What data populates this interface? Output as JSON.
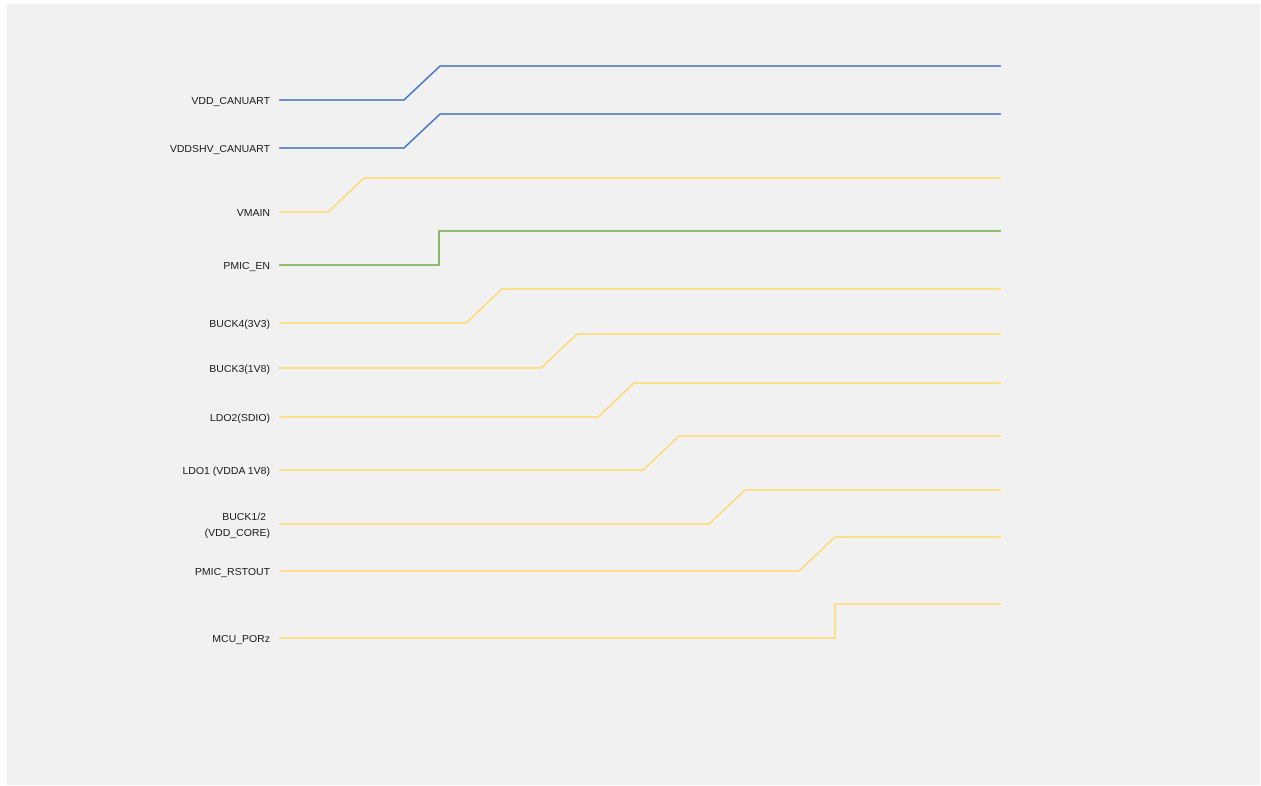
{
  "diagram": {
    "type": "power-sequence-timing",
    "colors": {
      "blue": "#4472c4",
      "yellow": "#ffd966",
      "green": "#70ad47"
    },
    "signals": [
      {
        "id": "vdd-canuart",
        "label": "VDD_CANUART",
        "color": "blue",
        "rise": "ramp"
      },
      {
        "id": "vddshv-canuart",
        "label": "VDDSHV_CANUART",
        "color": "blue",
        "rise": "ramp"
      },
      {
        "id": "vmain",
        "label": "VMAIN",
        "color": "yellow",
        "rise": "ramp"
      },
      {
        "id": "pmic-en",
        "label": "PMIC_EN",
        "color": "green",
        "rise": "step"
      },
      {
        "id": "buck4",
        "label": "BUCK4(3V3)",
        "color": "yellow",
        "rise": "ramp"
      },
      {
        "id": "buck3",
        "label": "BUCK3(1V8)",
        "color": "yellow",
        "rise": "ramp"
      },
      {
        "id": "ldo2",
        "label": "LDO2(SDIO)",
        "color": "yellow",
        "rise": "ramp"
      },
      {
        "id": "ldo1",
        "label": "LDO1 (VDDA 1V8)",
        "color": "yellow",
        "rise": "ramp"
      },
      {
        "id": "buck12",
        "label": "BUCK1/2\n(VDD_CORE)",
        "color": "yellow",
        "rise": "ramp"
      },
      {
        "id": "pmic-rstout",
        "label": "PMIC_RSTOUT",
        "color": "yellow",
        "rise": "ramp"
      },
      {
        "id": "mcu-porz",
        "label": "MCU_PORz",
        "color": "yellow",
        "rise": "step"
      }
    ]
  }
}
